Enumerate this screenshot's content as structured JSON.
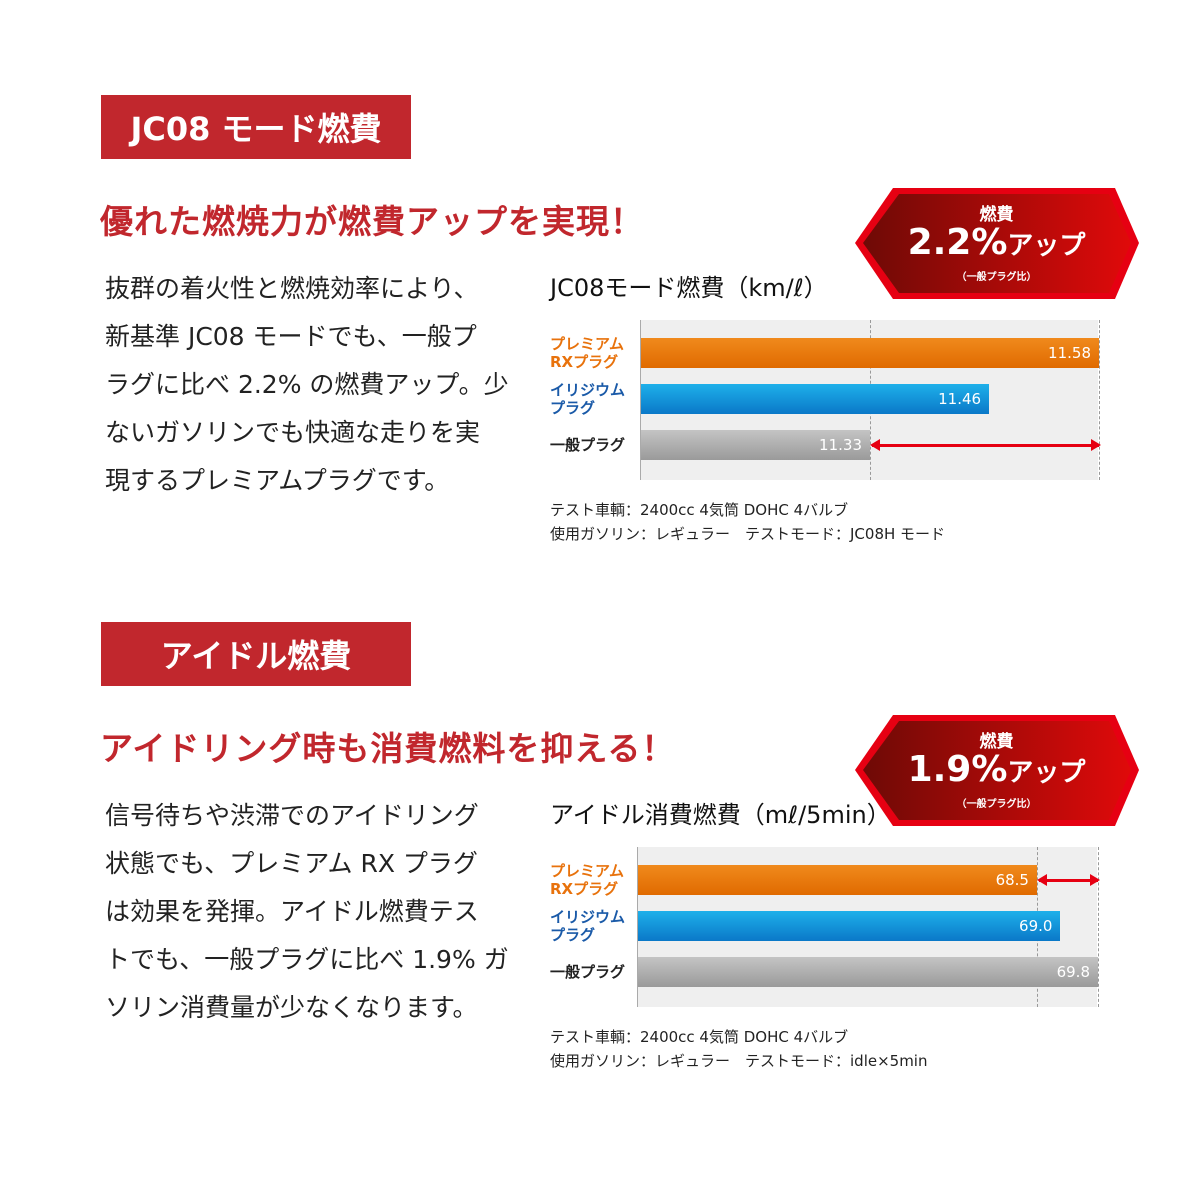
{
  "sections": [
    {
      "header": "JC08 モード燃費",
      "subtitle": "優れた燃焼力が燃費アップを実現！",
      "body": [
        "抜群の着火性と燃焼効率により、",
        "新基準 JC08 モードでも、一般プ",
        "ラグに比べ 2.2% の燃費アップ。少",
        "ないガソリンでも快適な走りを実",
        "現するプレミアムプラグです。"
      ],
      "badge": {
        "label": "燃費",
        "value": "2.2%",
        "suffix": "アップ",
        "note": "（一般プラグ比）"
      },
      "notes": [
        "テスト車輌：2400cc 4気筒 DOHC 4バルブ",
        "使用ガソリン：レギュラー　テストモード：JC08H モード"
      ]
    },
    {
      "header": "アイドル燃費",
      "subtitle": "アイドリング時も消費燃料を抑える！",
      "body": [
        "信号待ちや渋滞でのアイドリング",
        "状態でも、プレミアム RX プラグ",
        "は効果を発揮。アイドル燃費テス",
        "トでも、一般プラグに比べ 1.9% ガ",
        "ソリン消費量が少なくなります。"
      ],
      "badge": {
        "label": "燃費",
        "value": "1.9%",
        "suffix": "アップ",
        "note": "（一般プラグ比）"
      },
      "notes": [
        "テスト車輌：2400cc 4気筒 DOHC 4バルブ",
        "使用ガソリン：レギュラー　テストモード：idle×5min"
      ]
    }
  ],
  "colors": {
    "accent": "#c1272d",
    "premium": "#e8720c",
    "iridium": "#0a9ad8",
    "standard": "#a9a9a9",
    "arrow": "#e60012"
  },
  "chart_data": [
    {
      "type": "bar",
      "orientation": "horizontal",
      "title": "JC08モード燃費（km/ℓ）",
      "categories": [
        [
          "プレミアム",
          "RXプラグ"
        ],
        [
          "イリジウム",
          "プラグ"
        ],
        [
          "一般プラグ"
        ]
      ],
      "values": [
        11.58,
        11.46,
        11.33
      ],
      "labels": [
        "11.58",
        "11.46",
        "11.33"
      ],
      "xlim": [
        11.08,
        11.58
      ],
      "reference_lines": [
        11.33,
        11.58
      ],
      "arrow": [
        11.33,
        11.58
      ]
    },
    {
      "type": "bar",
      "orientation": "horizontal",
      "title": "アイドル消費燃費（mℓ/5min）",
      "categories": [
        [
          "プレミアム",
          "RXプラグ"
        ],
        [
          "イリジウム",
          "プラグ"
        ],
        [
          "一般プラグ"
        ]
      ],
      "values": [
        68.5,
        69.0,
        69.8
      ],
      "labels": [
        "68.5",
        "69.0",
        "69.8"
      ],
      "xlim": [
        60,
        69.8
      ],
      "reference_lines": [
        68.5,
        69.8
      ],
      "arrow": [
        68.5,
        69.8
      ]
    }
  ]
}
